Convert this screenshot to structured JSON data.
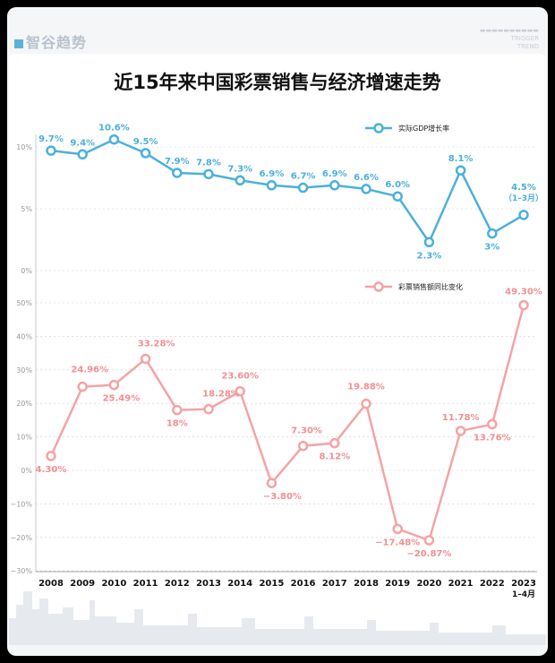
{
  "header": {
    "brand": "智谷趋势",
    "title": "近15年来中国彩票销售与经济增速走势"
  },
  "colors": {
    "gdp": "#4bb0dc",
    "gdp_label": "#4bb0dc",
    "lottery": "#f4a3a5",
    "lottery_label": "#f28f93",
    "axis": "#999999",
    "grid": "#cfcfcf"
  },
  "chart_data": [
    {
      "type": "line",
      "title": "",
      "x": [
        "2008",
        "2009",
        "2010",
        "2011",
        "2012",
        "2013",
        "2014",
        "2015",
        "2016",
        "2017",
        "2018",
        "2019",
        "2020",
        "2021",
        "2022",
        "2023"
      ],
      "series": [
        {
          "name": "实际GDP增长率",
          "values": [
            9.7,
            9.4,
            10.6,
            9.5,
            7.9,
            7.8,
            7.3,
            6.9,
            6.7,
            6.9,
            6.6,
            6.0,
            2.3,
            8.1,
            3.0,
            4.5
          ],
          "labels": [
            "9.7%",
            "9.4%",
            "10.6%",
            "9.5%",
            "7.9%",
            "7.8%",
            "7.3%",
            "6.9%",
            "6.7%",
            "6.9%",
            "6.6%",
            "6.0%",
            "2.3%",
            "8.1%",
            "3%",
            "4.5%"
          ],
          "annotation_last": "（1–3月）"
        }
      ],
      "yticks": [
        "0%",
        "5%",
        "10%"
      ],
      "ylim": [
        0,
        12
      ],
      "legend": "top-right",
      "grid": true
    },
    {
      "type": "line",
      "title": "",
      "x": [
        "2008",
        "2009",
        "2010",
        "2011",
        "2012",
        "2013",
        "2014",
        "2015",
        "2016",
        "2017",
        "2018",
        "2019",
        "2020",
        "2021",
        "2022",
        "2023"
      ],
      "series": [
        {
          "name": "彩票销售额同比变化",
          "values": [
            4.3,
            24.96,
            25.49,
            33.28,
            18.0,
            18.28,
            23.6,
            -3.8,
            7.3,
            8.12,
            19.88,
            -17.48,
            -20.87,
            11.78,
            13.76,
            49.3
          ],
          "labels": [
            "4.30%",
            "24.96%",
            "25.49%",
            "33.28%",
            "18%",
            "18.28%",
            "23.60%",
            "−3.80%",
            "7.30%",
            "8.12%",
            "19.88%",
            "−17.48%",
            "−20.87%",
            "11.78%",
            "13.76%",
            "49.30%"
          ]
        }
      ],
      "yticks": [
        "−30%",
        "−20%",
        "−10%",
        "0%",
        "10%",
        "20%",
        "30%",
        "40%",
        "50%"
      ],
      "ylim": [
        -30,
        50
      ],
      "legend": "top-right",
      "grid": true
    }
  ],
  "xaxis": {
    "ticks": [
      "2008",
      "2009",
      "2010",
      "2011",
      "2012",
      "2013",
      "2014",
      "2015",
      "2016",
      "2017",
      "2018",
      "2019",
      "2020",
      "2021",
      "2022",
      "2023"
    ],
    "last_sub": "1–4月"
  }
}
